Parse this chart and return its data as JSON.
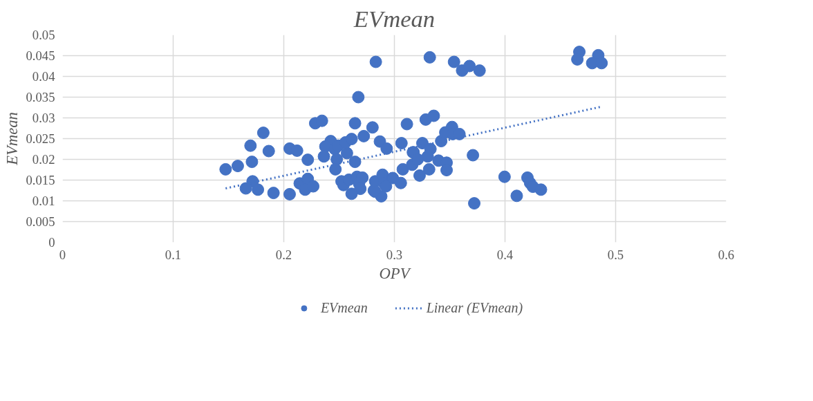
{
  "chart_data": {
    "type": "scatter",
    "title": "EVmean",
    "xlabel": "OPV",
    "ylabel": "EVmean",
    "xlim": [
      0,
      0.6
    ],
    "xticks": [
      0,
      0.1,
      0.2,
      0.3,
      0.4,
      0.5,
      0.6
    ],
    "ylim": [
      0,
      0.05
    ],
    "yticks": [
      0,
      0.005,
      0.01,
      0.015,
      0.02,
      0.025,
      0.03,
      0.035,
      0.04,
      0.045,
      0.05
    ],
    "grid": true,
    "legend": "bottom",
    "series": [
      {
        "name": "EVmean",
        "marker": "circle",
        "color": "#4472c4",
        "x": [
          0.1474,
          0.1584,
          0.1699,
          0.1712,
          0.1718,
          0.1657,
          0.1766,
          0.1815,
          0.1864,
          0.1907,
          0.2053,
          0.212,
          0.2217,
          0.2053,
          0.2144,
          0.2217,
          0.2193,
          0.2266,
          0.2284,
          0.2345,
          0.2424,
          0.2376,
          0.2363,
          0.2461,
          0.2491,
          0.2479,
          0.2571,
          0.2558,
          0.2613,
          0.2467,
          0.2644,
          0.2644,
          0.2723,
          0.2802,
          0.2674,
          0.2832,
          0.2869,
          0.293,
          0.3064,
          0.3113,
          0.3076,
          0.3167,
          0.3161,
          0.2522,
          0.254,
          0.2589,
          0.2662,
          0.2711,
          0.268,
          0.2692,
          0.2613,
          0.2826,
          0.2893,
          0.2906,
          0.2985,
          0.3058,
          0.2826,
          0.2881,
          0.2814,
          0.2924,
          0.332,
          0.3539,
          0.3612,
          0.3679,
          0.377,
          0.3283,
          0.3356,
          0.3253,
          0.3326,
          0.3423,
          0.346,
          0.3521,
          0.3527,
          0.3588,
          0.3174,
          0.321,
          0.3301,
          0.3399,
          0.3472,
          0.3472,
          0.3314,
          0.3228,
          0.371,
          0.3996,
          0.4203,
          0.4227,
          0.4252,
          0.4325,
          0.4106,
          0.3722,
          0.4672,
          0.4654,
          0.4843,
          0.4788,
          0.4873
        ],
        "values": [
          0.0176,
          0.0184,
          0.0233,
          0.0194,
          0.0147,
          0.013,
          0.0127,
          0.0264,
          0.022,
          0.0119,
          0.0226,
          0.0221,
          0.0199,
          0.0116,
          0.0142,
          0.0153,
          0.0127,
          0.0135,
          0.0287,
          0.0293,
          0.0244,
          0.0231,
          0.0207,
          0.0225,
          0.0233,
          0.02,
          0.0215,
          0.0241,
          0.0249,
          0.0176,
          0.0194,
          0.0287,
          0.0256,
          0.0277,
          0.035,
          0.0435,
          0.0243,
          0.0226,
          0.0239,
          0.0285,
          0.0176,
          0.0217,
          0.0187,
          0.0147,
          0.0138,
          0.0151,
          0.0158,
          0.0156,
          0.0142,
          0.0129,
          0.0117,
          0.0147,
          0.0163,
          0.0142,
          0.0155,
          0.0143,
          0.0122,
          0.0111,
          0.0125,
          0.0135,
          0.0446,
          0.0435,
          0.0414,
          0.0425,
          0.0414,
          0.0296,
          0.0305,
          0.0239,
          0.0225,
          0.0244,
          0.0265,
          0.0278,
          0.0261,
          0.0261,
          0.0217,
          0.02,
          0.0207,
          0.0197,
          0.0192,
          0.0174,
          0.0176,
          0.0161,
          0.021,
          0.0158,
          0.0156,
          0.0143,
          0.0134,
          0.0127,
          0.0112,
          0.0094,
          0.0459,
          0.0441,
          0.0451,
          0.0432,
          0.0432
        ]
      },
      {
        "name": "Linear (EVmean)",
        "type": "line",
        "color": "#4472c4",
        "line_style": "dotted",
        "x": [
          0.1474,
          0.4873
        ],
        "values": [
          0.013,
          0.0327
        ]
      }
    ]
  }
}
